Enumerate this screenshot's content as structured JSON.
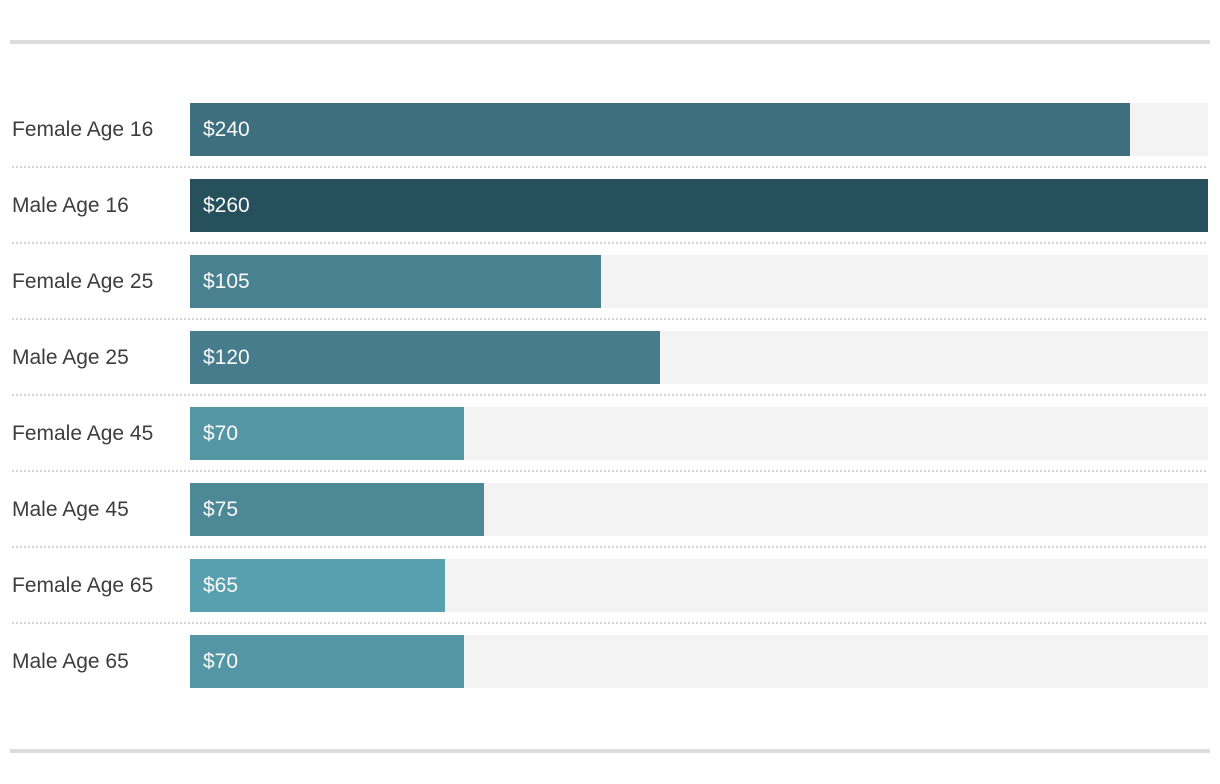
{
  "chart_data": {
    "type": "bar",
    "orientation": "horizontal",
    "title": "",
    "categories": [
      "Female Age 16",
      "Male Age 16",
      "Female Age 25",
      "Male Age 25",
      "Female Age 45",
      "Male Age 45",
      "Female Age 65",
      "Male Age 65"
    ],
    "values": [
      240,
      260,
      105,
      120,
      70,
      75,
      65,
      70
    ],
    "value_labels": [
      "$240",
      "$260",
      "$105",
      "$120",
      "$70",
      "$75",
      "$65",
      "$70"
    ],
    "bar_colors": [
      "#3e6f7e",
      "#25505c",
      "#4a8190",
      "#467c8b",
      "#5596a4",
      "#4c8896",
      "#59a0ae",
      "#5596a4"
    ],
    "xlim": [
      0,
      260
    ],
    "grid": false,
    "legend": false,
    "track_color": "#f3f3f3",
    "label_color": "#3d3d3d",
    "value_text_color": "#fafafa",
    "divider_color": "#dcdcdc",
    "dotted_separator_color": "#d4d4d4"
  }
}
